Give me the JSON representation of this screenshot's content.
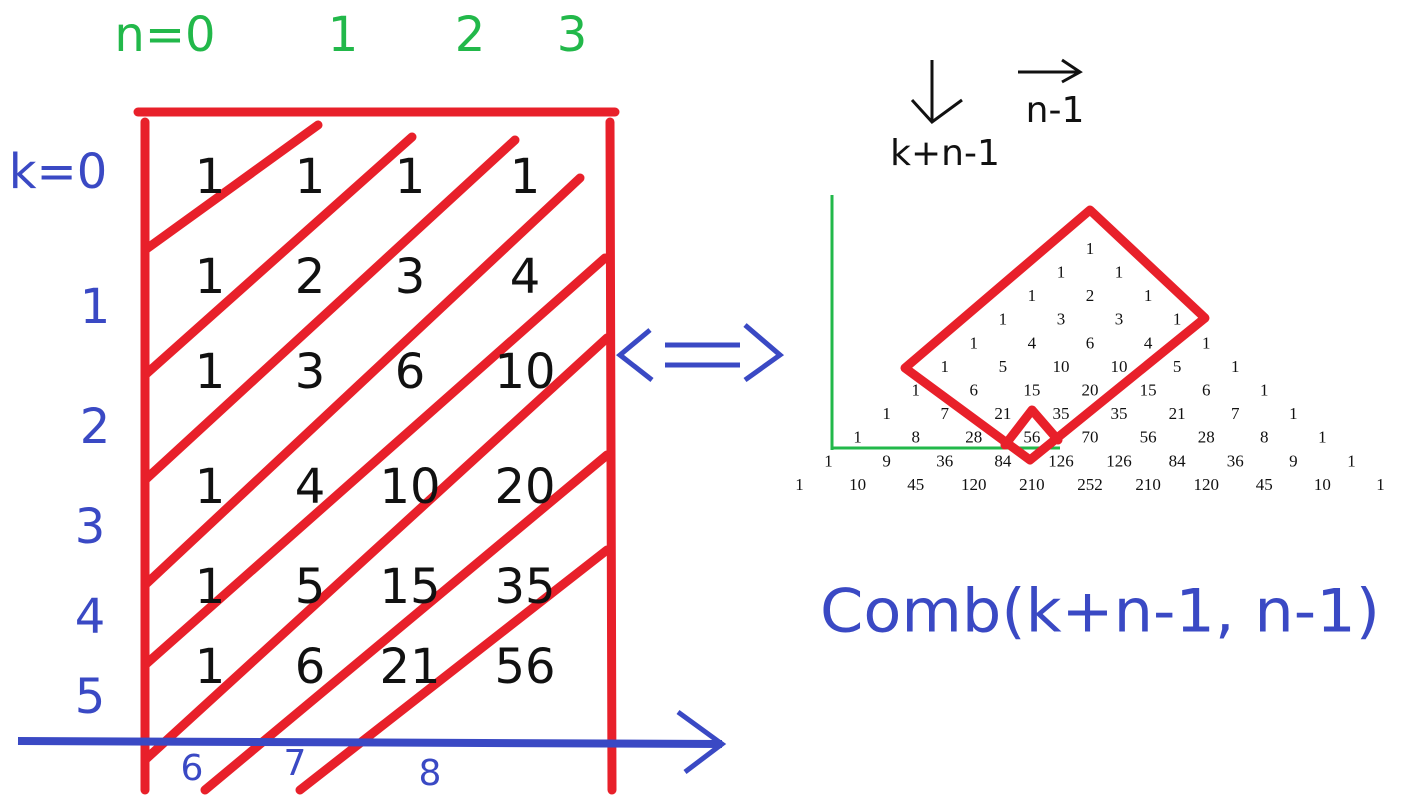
{
  "grid": {
    "column_labels": [
      "n=0",
      "1",
      "2",
      "3"
    ],
    "row_labels": [
      "k=0",
      "1",
      "2",
      "3",
      "4",
      "5"
    ],
    "extra_labels": [
      "6",
      "7",
      "8"
    ],
    "rows": [
      [
        1,
        1,
        1,
        1
      ],
      [
        1,
        2,
        3,
        4
      ],
      [
        1,
        3,
        6,
        10
      ],
      [
        1,
        4,
        10,
        20
      ],
      [
        1,
        5,
        15,
        35
      ],
      [
        1,
        6,
        21,
        56
      ]
    ]
  },
  "annotations": {
    "down": "k+n-1",
    "right": "n-1"
  },
  "triangle": {
    "rows": [
      [
        1
      ],
      [
        1,
        1
      ],
      [
        1,
        2,
        1
      ],
      [
        1,
        3,
        3,
        1
      ],
      [
        1,
        4,
        6,
        4,
        1
      ],
      [
        1,
        5,
        10,
        10,
        5,
        1
      ],
      [
        1,
        6,
        15,
        20,
        15,
        6,
        1
      ],
      [
        1,
        7,
        21,
        35,
        35,
        21,
        7,
        1
      ],
      [
        1,
        8,
        28,
        56,
        70,
        56,
        28,
        8,
        1
      ],
      [
        1,
        9,
        36,
        84,
        126,
        126,
        84,
        36,
        9,
        1
      ],
      [
        1,
        10,
        45,
        120,
        210,
        252,
        210,
        120,
        45,
        10,
        1
      ]
    ]
  },
  "formula": "Comb(k+n-1, n-1)"
}
